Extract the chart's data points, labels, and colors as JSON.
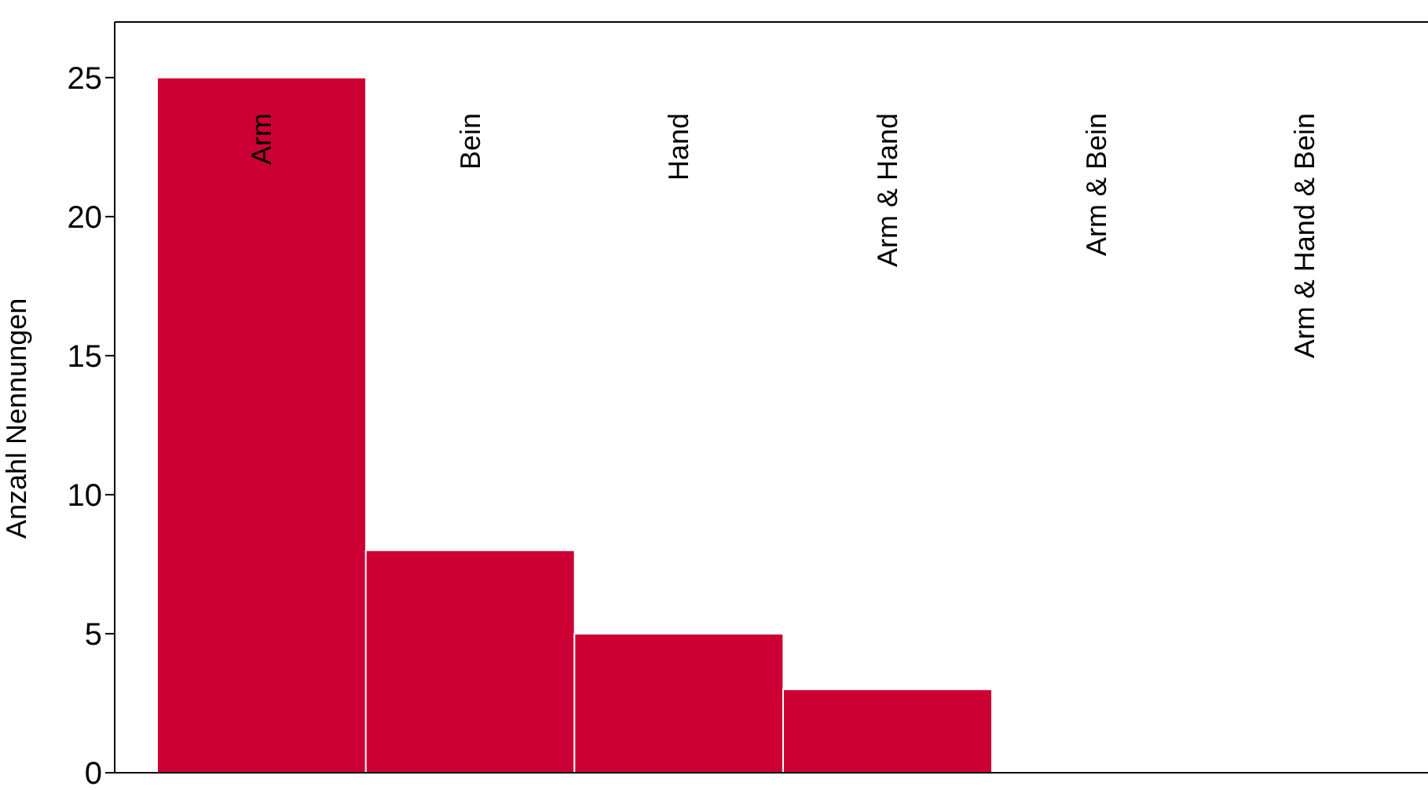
{
  "chart_data": {
    "type": "bar",
    "ylabel": "Anzahl Nennungen",
    "categories": [
      "Arm",
      "Bein",
      "Hand",
      "Arm & Hand",
      "Arm & Bein",
      "Arm & Hand & Bein"
    ],
    "values": [
      25,
      8,
      5,
      3,
      0,
      0
    ],
    "color": "#cc0033",
    "ylim": [
      0,
      27
    ],
    "yticks": [
      0,
      5,
      10,
      15,
      20,
      25
    ],
    "grid": false
  }
}
